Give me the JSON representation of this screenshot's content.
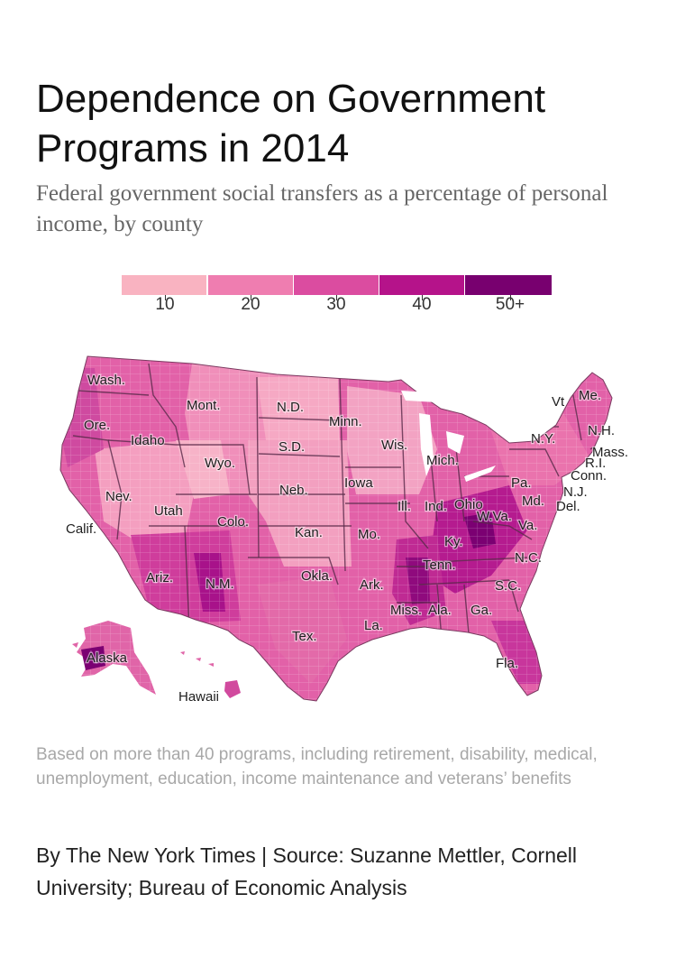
{
  "header": {
    "title": "Dependence on Government Programs in 2014",
    "subtitle": "Federal government social transfers as a percentage of personal income, by county"
  },
  "legend": {
    "items": [
      {
        "label": "10",
        "color": "#f9b3c1"
      },
      {
        "label": "20",
        "color": "#ef7db0"
      },
      {
        "label": "30",
        "color": "#db4ca0"
      },
      {
        "label": "40",
        "color": "#b5138a"
      },
      {
        "label": "50+",
        "color": "#78006f"
      }
    ]
  },
  "map": {
    "state_labels": {
      "wa": "Wash.",
      "or": "Ore.",
      "id": "Idaho",
      "mt": "Mont.",
      "wy": "Wyo.",
      "nd": "N.D.",
      "sd": "S.D.",
      "ne": "Neb.",
      "mn": "Minn.",
      "wi": "Wis.",
      "ia": "Iowa",
      "il": "Ill.",
      "in": "Ind.",
      "mi": "Mich.",
      "oh": "Ohio",
      "pa": "Pa.",
      "ny": "N.Y.",
      "vt": "Vt",
      "me": "Me.",
      "nh": "N.H.",
      "ma": "Mass.",
      "ri": "R.I.",
      "ct": "Conn.",
      "nj": "N.J.",
      "md": "Md.",
      "de": "Del.",
      "wv": "W.Va.",
      "va": "Va.",
      "ky": "Ky.",
      "tn": "Tenn.",
      "nc": "N.C.",
      "sc": "S.C.",
      "ga": "Ga.",
      "al": "Ala.",
      "ms": "Miss.",
      "la": "La.",
      "ar": "Ark.",
      "mo": "Mo.",
      "ks": "Kan.",
      "ok": "Okla.",
      "tx": "Tex.",
      "nm": "N.M.",
      "az": "Ariz.",
      "ut": "Utah",
      "co": "Colo.",
      "nv": "Nev.",
      "ca": "Calif.",
      "fl": "Fla.",
      "ak": "Alaska",
      "hi": "Hawaii"
    }
  },
  "note": "Based on more than 40 programs, including retirement, disability, medical, unemployment, education, income maintenance and veterans’ benefits",
  "credit": "By The New York Times | Source: Suzanne Mettler, Cornell University; Bureau of Economic Analysis"
}
